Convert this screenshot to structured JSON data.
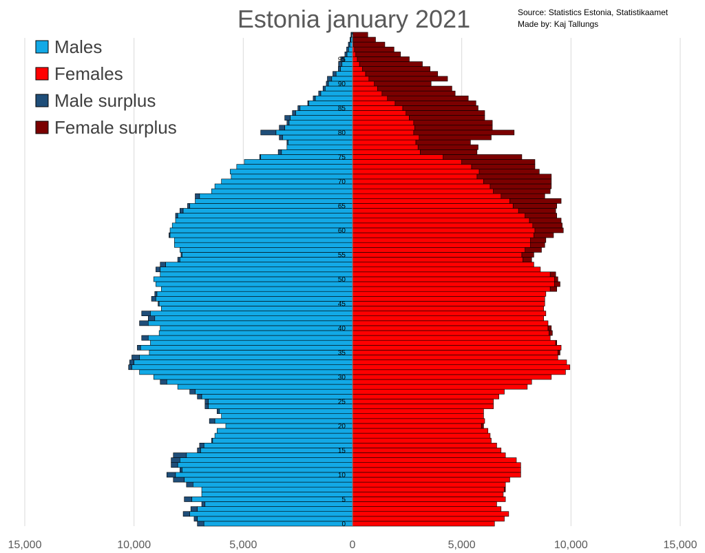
{
  "chart_data": {
    "type": "bar",
    "orientation": "horizontal-pyramid",
    "title": "Estonia january 2021",
    "source_lines": [
      "Source: Statistics Estonia, Statistikaamet",
      "Made by: Kaj Tallungs"
    ],
    "legend": [
      {
        "label": "Males",
        "color": "#12a9e6"
      },
      {
        "label": "Females",
        "color": "#ff0000"
      },
      {
        "label": "Male surplus",
        "color": "#1f4e79"
      },
      {
        "label": "Female surplus",
        "color": "#7b0000"
      }
    ],
    "colors": {
      "male": "#12a9e6",
      "female": "#ff0000",
      "male_surplus": "#1f4e79",
      "female_surplus": "#7b0000",
      "grid": "#d9d9d9"
    },
    "xlim": [
      -15000,
      15000
    ],
    "x_ticks": [
      -15000,
      -10000,
      -5000,
      0,
      5000,
      10000,
      15000
    ],
    "x_tick_labels": [
      "15,000",
      "10,000",
      "5,000",
      "0",
      "5,000",
      "10,000",
      "15,000"
    ],
    "age_tick_labels": [
      "0",
      "5",
      "10",
      "15",
      "20",
      "25",
      "30",
      "35",
      "40",
      "45",
      "50",
      "55",
      "60",
      "65",
      "70",
      "75",
      "80",
      "85",
      "90",
      "95"
    ],
    "ages": [
      0,
      1,
      2,
      3,
      4,
      5,
      6,
      7,
      8,
      9,
      10,
      11,
      12,
      13,
      14,
      15,
      16,
      17,
      18,
      19,
      20,
      21,
      22,
      23,
      24,
      25,
      26,
      27,
      28,
      29,
      30,
      31,
      32,
      33,
      34,
      35,
      36,
      37,
      38,
      39,
      40,
      41,
      42,
      43,
      44,
      45,
      46,
      47,
      48,
      49,
      50,
      51,
      52,
      53,
      54,
      55,
      56,
      57,
      58,
      59,
      60,
      61,
      62,
      63,
      64,
      65,
      66,
      67,
      68,
      69,
      70,
      71,
      72,
      73,
      74,
      75,
      76,
      77,
      78,
      79,
      80,
      81,
      82,
      83,
      84,
      85,
      86,
      87,
      88,
      89,
      90,
      91,
      92,
      93,
      94,
      95,
      96,
      97,
      98,
      99,
      100
    ],
    "series": [
      {
        "name": "Males",
        "values": [
          6800,
          7100,
          7450,
          7100,
          6750,
          7350,
          6900,
          6900,
          7300,
          7700,
          8100,
          7800,
          8000,
          7900,
          7600,
          6950,
          6800,
          6400,
          6300,
          6200,
          5800,
          6300,
          6000,
          6100,
          6600,
          6600,
          6900,
          7200,
          8000,
          8500,
          9100,
          9750,
          10100,
          10000,
          9750,
          9300,
          9700,
          9250,
          9350,
          8850,
          8800,
          9350,
          9050,
          9250,
          8750,
          8850,
          9000,
          8950,
          8750,
          9000,
          9100,
          8800,
          8800,
          8550,
          7900,
          7800,
          7900,
          8150,
          8150,
          8350,
          8350,
          8250,
          8100,
          8000,
          7750,
          7450,
          7200,
          7000,
          6450,
          6300,
          6000,
          5550,
          5600,
          5300,
          4950,
          4200,
          3250,
          3000,
          2950,
          3200,
          3500,
          3100,
          2900,
          2850,
          2600,
          2400,
          2000,
          1700,
          1450,
          1250,
          1100,
          950,
          750,
          550,
          480,
          380,
          250,
          180,
          120,
          70,
          40
        ]
      },
      {
        "name": "Females",
        "values": [
          6500,
          6950,
          7150,
          6800,
          6600,
          7000,
          6900,
          6950,
          7000,
          7200,
          7700,
          7700,
          7700,
          7500,
          7000,
          6800,
          6600,
          6350,
          6300,
          6200,
          5900,
          6050,
          6000,
          6000,
          6450,
          6450,
          6700,
          6950,
          8000,
          8200,
          9100,
          9750,
          9950,
          9800,
          9400,
          9400,
          9550,
          9300,
          9050,
          9000,
          8950,
          8950,
          8750,
          8850,
          8750,
          8800,
          8800,
          8850,
          9050,
          9250,
          9250,
          9050,
          8600,
          8300,
          7800,
          7750,
          7900,
          8150,
          8150,
          8300,
          8350,
          8250,
          8100,
          7900,
          7600,
          7350,
          7200,
          6800,
          6450,
          6300,
          6000,
          5700,
          5800,
          5450,
          5000,
          4150,
          3100,
          3000,
          2900,
          3050,
          2800,
          2850,
          2800,
          2600,
          2450,
          2300,
          1950,
          1600,
          1350,
          1150,
          1000,
          750,
          600,
          450,
          320,
          220,
          150,
          90,
          50,
          25,
          10
        ]
      },
      {
        "name": "Male surplus",
        "values": [
          300,
          150,
          300,
          300,
          150,
          350,
          0,
          0,
          300,
          500,
          400,
          100,
          300,
          400,
          600,
          150,
          200,
          50,
          0,
          0,
          0,
          250,
          0,
          100,
          150,
          150,
          200,
          250,
          0,
          300,
          0,
          0,
          150,
          200,
          350,
          0,
          150,
          0,
          300,
          0,
          0,
          400,
          300,
          400,
          0,
          50,
          200,
          100,
          0,
          0,
          0,
          0,
          200,
          250,
          100,
          50,
          0,
          0,
          0,
          50,
          0,
          0,
          0,
          100,
          150,
          100,
          0,
          200,
          0,
          0,
          0,
          0,
          0,
          0,
          0,
          50,
          150,
          0,
          50,
          150,
          700,
          250,
          100,
          250,
          150,
          100,
          50,
          100,
          100,
          100,
          100,
          200,
          150,
          100,
          160,
          160,
          100,
          90,
          70,
          45,
          30
        ]
      },
      {
        "name": "Female surplus",
        "values": [
          0,
          0,
          0,
          0,
          0,
          0,
          0,
          50,
          0,
          0,
          0,
          0,
          0,
          0,
          0,
          0,
          0,
          0,
          0,
          0,
          100,
          0,
          0,
          0,
          0,
          0,
          0,
          0,
          0,
          0,
          0,
          0,
          0,
          0,
          0,
          100,
          0,
          50,
          0,
          150,
          150,
          0,
          0,
          0,
          0,
          0,
          0,
          0,
          300,
          250,
          150,
          250,
          0,
          0,
          400,
          550,
          750,
          650,
          700,
          900,
          1300,
          1350,
          1450,
          1450,
          1700,
          2000,
          2350,
          2000,
          2600,
          2800,
          3100,
          3400,
          2750,
          2900,
          3350,
          3600,
          2600,
          2750,
          2500,
          3300,
          4600,
          3550,
          3600,
          3450,
          3600,
          3450,
          3700,
          3700,
          3350,
          3400,
          2600,
          3600,
          3300,
          3100,
          2880,
          2380,
          2050,
          1810,
          1430,
          1030,
          690
        ]
      }
    ]
  }
}
